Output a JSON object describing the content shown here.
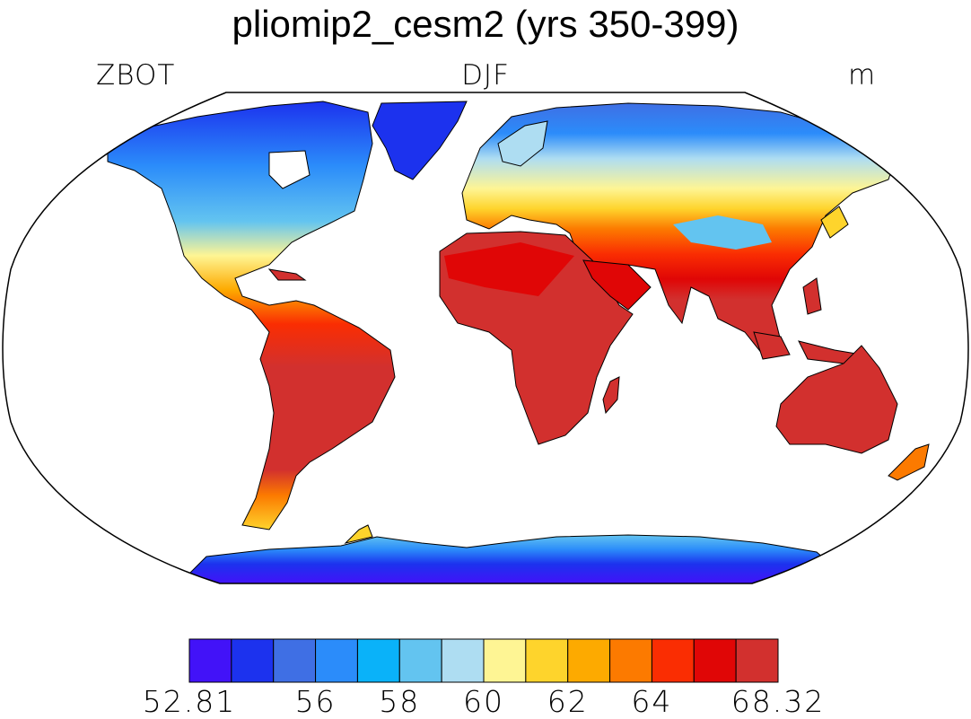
{
  "title": "pliomip2_cesm2 (yrs 350-399)",
  "variable": "ZBOT",
  "season": "DJF",
  "units": "m",
  "projection": "Robinson",
  "colorbar": {
    "min": 52.81,
    "max": 68.32,
    "tick_labels": [
      "52.81",
      "56",
      "58",
      "60",
      "62",
      "64",
      "68.32"
    ],
    "colors": [
      "#4212F8",
      "#1C32EE",
      "#3F6FE4",
      "#2B8CFA",
      "#0AB2F9",
      "#63C4F0",
      "#AEDDF2",
      "#FEF594",
      "#FED42C",
      "#FDAA00",
      "#FC7A00",
      "#FA2D02",
      "#E00606",
      "#D2302E"
    ]
  }
}
